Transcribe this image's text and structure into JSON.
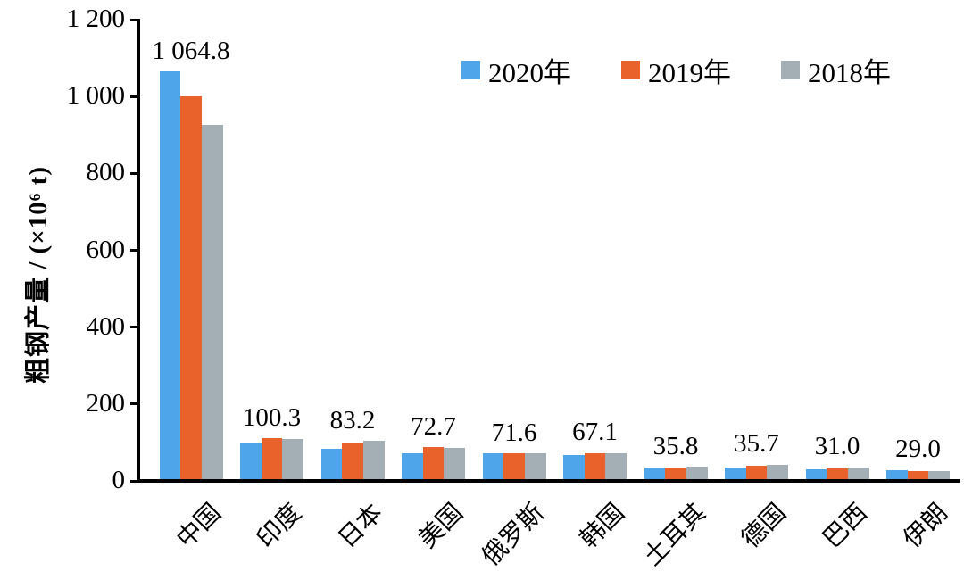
{
  "chart_data": {
    "type": "bar",
    "title": "",
    "ylabel": "粗钢产量 / (×10⁶ t)",
    "xlabel": "",
    "categories": [
      "中国",
      "印度",
      "日本",
      "美国",
      "俄罗斯",
      "韩国",
      "土耳其",
      "德国",
      "巴西",
      "伊朗"
    ],
    "series": [
      {
        "name": "2020年",
        "color": "#4FA5E9",
        "values": [
          1064.8,
          100.3,
          83.2,
          72.7,
          71.6,
          67.1,
          35.8,
          35.7,
          31.0,
          29.0
        ]
      },
      {
        "name": "2019年",
        "color": "#E9612B",
        "values": [
          1001.0,
          111.2,
          99.3,
          87.8,
          71.6,
          71.4,
          33.7,
          39.7,
          32.6,
          25.6
        ]
      },
      {
        "name": "2018年",
        "color": "#A4AFB5",
        "values": [
          926.0,
          109.3,
          104.3,
          86.6,
          72.0,
          72.5,
          37.3,
          42.4,
          35.4,
          24.5
        ]
      }
    ],
    "bar_labels": [
      "1 064.8",
      "100.3",
      "83.2",
      "72.7",
      "71.6",
      "67.1",
      "35.8",
      "35.7",
      "31.0",
      "29.0"
    ],
    "bar_labels_refer_to": "2020年",
    "y_axis": {
      "ticks": [
        {
          "value": 0,
          "label": "0"
        },
        {
          "value": 200,
          "label": "200"
        },
        {
          "value": 400,
          "label": "400"
        },
        {
          "value": 600,
          "label": "600"
        },
        {
          "value": 800,
          "label": "800"
        },
        {
          "value": 1000,
          "label": "1 000"
        },
        {
          "value": 1200,
          "label": "1 200"
        }
      ],
      "ylim": [
        0,
        1200
      ]
    },
    "legend_position": "top-inside",
    "grid": false,
    "colors": {
      "axis": "#000000",
      "text": "#000000",
      "background": "#ffffff",
      "series_2020": "#4FA5E9",
      "series_2019": "#E9612B",
      "series_2018": "#A4AFB5"
    }
  }
}
